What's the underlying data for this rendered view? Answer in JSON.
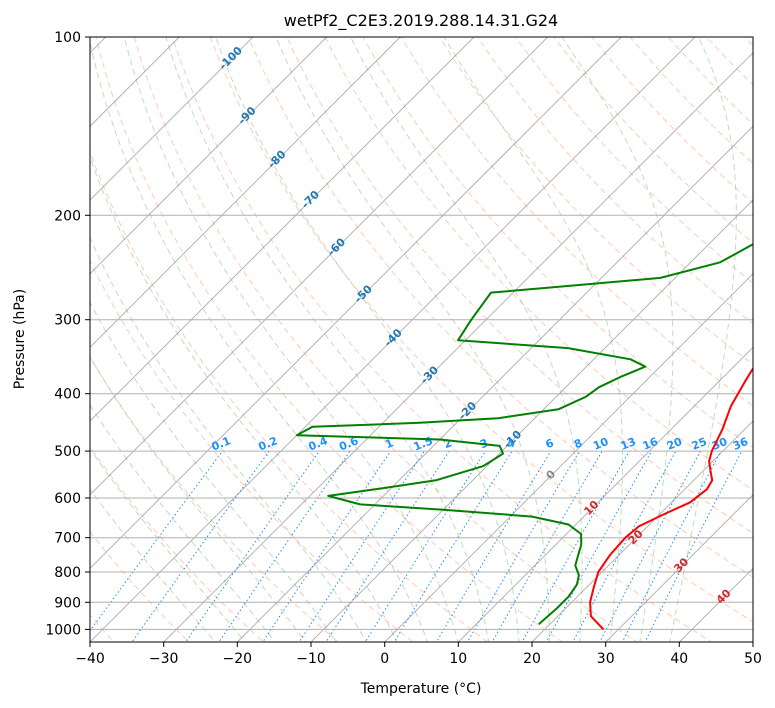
{
  "chart_data": {
    "type": "line",
    "title": "wetPf2_C2E3.2019.288.14.31.G24",
    "xlabel": "Temperature (°C)",
    "ylabel": "Pressure (hPa)",
    "xlim": [
      -40,
      50
    ],
    "ylim": [
      1050,
      100
    ],
    "y_scale": "log",
    "x_ticks": [
      "−40",
      "−30",
      "−20",
      "−10",
      "0",
      "10",
      "20",
      "30",
      "40",
      "50"
    ],
    "y_ticks": [
      "100",
      "200",
      "300",
      "400",
      "500",
      "600",
      "700",
      "800",
      "900",
      "1000"
    ],
    "y_tick_values": [
      100,
      200,
      300,
      400,
      500,
      600,
      700,
      800,
      900,
      1000
    ],
    "grid": true,
    "colors": {
      "temperature": "#ff0000",
      "dewpoint": "#008000",
      "dry_adiabat": "#ffa07a",
      "moist_adiabat": "#8fbc8f",
      "mixing_ratio": "#1e90ff",
      "isotherm": "#888888",
      "isotherm_label": "#1f77b4",
      "isotherm_label_warm": "#d62728"
    },
    "series": [
      {
        "name": "Temperature",
        "points": [
          [
            28,
            1000
          ],
          [
            24.5,
            950
          ],
          [
            22.5,
            900
          ],
          [
            21,
            850
          ],
          [
            19.5,
            800
          ],
          [
            18.8,
            750
          ],
          [
            18.5,
            700
          ],
          [
            18.8,
            670
          ],
          [
            20.5,
            640
          ],
          [
            22.5,
            610
          ],
          [
            23,
            580
          ],
          [
            22.5,
            560
          ],
          [
            21,
            540
          ],
          [
            19.5,
            520
          ],
          [
            18.5,
            500
          ],
          [
            17,
            460
          ],
          [
            15,
            420
          ],
          [
            13.5,
            380
          ],
          [
            12,
            340
          ],
          [
            11,
            310
          ],
          [
            9.5,
            280
          ],
          [
            7,
            250
          ],
          [
            4.5,
            220
          ],
          [
            3,
            200
          ],
          [
            2.8,
            180
          ],
          [
            3,
            160
          ],
          [
            2.5,
            140
          ],
          [
            2,
            125
          ],
          [
            2.5,
            115
          ],
          [
            4,
            108
          ],
          [
            5.5,
            100
          ]
        ]
      },
      {
        "name": "Dewpoint",
        "points": [
          [
            18.5,
            980
          ],
          [
            18.8,
            920
          ],
          [
            18.8,
            880
          ],
          [
            18.3,
            840
          ],
          [
            17.3,
            810
          ],
          [
            15.5,
            780
          ],
          [
            14.5,
            750
          ],
          [
            13.5,
            720
          ],
          [
            12,
            690
          ],
          [
            9,
            665
          ],
          [
            3,
            645
          ],
          [
            -10,
            628
          ],
          [
            -22,
            615
          ],
          [
            -27.5,
            595
          ],
          [
            -22,
            580
          ],
          [
            -15,
            560
          ],
          [
            -10.5,
            530
          ],
          [
            -9.5,
            505
          ],
          [
            -11,
            490
          ],
          [
            -20,
            478
          ],
          [
            -40,
            470
          ],
          [
            -39,
            455
          ],
          [
            -25,
            448
          ],
          [
            -15,
            440
          ],
          [
            -8,
            425
          ],
          [
            -6,
            405
          ],
          [
            -5.5,
            390
          ],
          [
            -4,
            375
          ],
          [
            -2,
            360
          ],
          [
            -5,
            350
          ],
          [
            -15,
            335
          ],
          [
            -31,
            325
          ],
          [
            -32,
            300
          ],
          [
            -33,
            270
          ],
          [
            -26,
            265
          ],
          [
            -12,
            255
          ],
          [
            -6,
            240
          ],
          [
            -3.5,
            220
          ],
          [
            -3,
            200
          ],
          [
            -4,
            185
          ],
          [
            -8,
            175
          ],
          [
            -10,
            168
          ],
          [
            -11,
            162
          ],
          [
            -9,
            155
          ],
          [
            -5,
            148
          ],
          [
            -1,
            140
          ],
          [
            0.5,
            130
          ],
          [
            1.5,
            118
          ],
          [
            2.5,
            108
          ],
          [
            4,
            100
          ]
        ]
      }
    ],
    "isotherm_labels": [
      "-100",
      "-90",
      "-80",
      "-70",
      "-60",
      "-50",
      "-40",
      "-30",
      "-20",
      "-10",
      "0",
      "10",
      "20",
      "30",
      "40"
    ],
    "mixing_ratio_labels": [
      "0.1",
      "0.2",
      "0.4",
      "0.6",
      "1",
      "1.5",
      "2",
      "3",
      "4",
      "6",
      "8",
      "10",
      "13",
      "16",
      "20",
      "25",
      "30",
      "36"
    ]
  }
}
